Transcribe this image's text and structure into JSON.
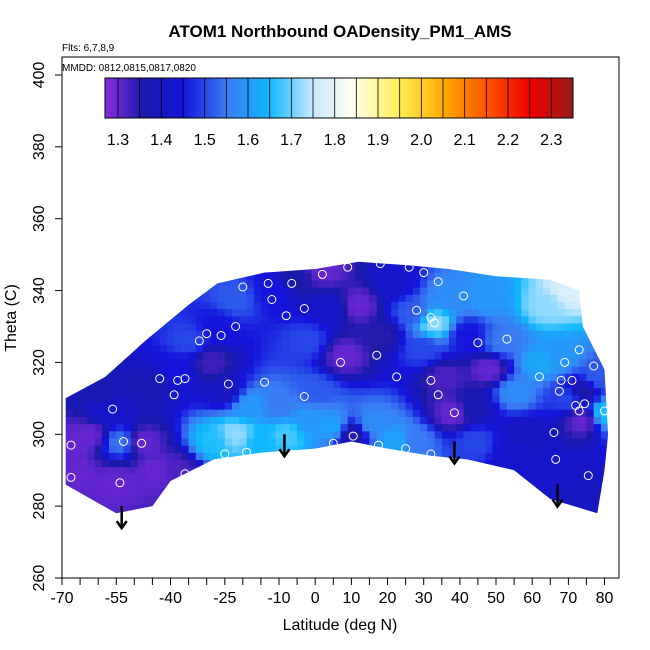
{
  "chart_data": {
    "type": "heatmap",
    "title": "ATOM1 Northbound OADensity_PM1_AMS",
    "subtitle_flights": "Flts: 6,7,8,9",
    "subtitle_dates": "MMDD: 0812,0815,0817,0820",
    "xlabel": "Latitude (deg N)",
    "ylabel": "Theta (C)",
    "xlim": [
      -70,
      84
    ],
    "ylim": [
      260,
      405
    ],
    "x_tick_values": [
      -70,
      -55,
      -40,
      -25,
      -10,
      0,
      10,
      20,
      30,
      40,
      50,
      60,
      70,
      80
    ],
    "x_tick_labels": [
      "-70",
      "-55",
      "-40",
      "-25",
      "-10",
      "0",
      "10",
      "20",
      "30",
      "40",
      "50",
      "60",
      "70",
      "80"
    ],
    "x_minor_ticks": [
      -65,
      -60,
      -50,
      -45,
      -35,
      -30,
      -20,
      -15,
      -5,
      5,
      15,
      25,
      35,
      45,
      55,
      65,
      75
    ],
    "y_tick_values": [
      260,
      280,
      300,
      320,
      340,
      360,
      380,
      400
    ],
    "y_tick_labels": [
      "260",
      "280",
      "300",
      "320",
      "340",
      "360",
      "380",
      "400"
    ],
    "colorbar": {
      "labels": [
        "1.3",
        "1.4",
        "1.5",
        "1.6",
        "1.7",
        "1.8",
        "1.9",
        "2.0",
        "2.1",
        "2.2",
        "2.3"
      ],
      "label_values": [
        1.3,
        1.4,
        1.5,
        1.6,
        1.7,
        1.8,
        1.9,
        2.0,
        2.1,
        2.2,
        2.3
      ],
      "range": [
        1.27,
        2.35
      ],
      "stops": [
        {
          "v": 1.27,
          "c": "#8a2be2"
        },
        {
          "v": 1.36,
          "c": "#1a1aa8"
        },
        {
          "v": 1.45,
          "c": "#1414dd"
        },
        {
          "v": 1.55,
          "c": "#3a7af2"
        },
        {
          "v": 1.65,
          "c": "#10b8ff"
        },
        {
          "v": 1.75,
          "c": "#c8e8ff"
        },
        {
          "v": 1.84,
          "c": "#fffff0"
        },
        {
          "v": 1.95,
          "c": "#ffee55"
        },
        {
          "v": 2.05,
          "c": "#ffaa00"
        },
        {
          "v": 2.15,
          "c": "#ff5500"
        },
        {
          "v": 2.25,
          "c": "#ee0000"
        },
        {
          "v": 2.35,
          "c": "#991a1a"
        }
      ]
    },
    "domain_outline": [
      [
        -69,
        286
      ],
      [
        -69,
        310
      ],
      [
        -58,
        316
      ],
      [
        -47,
        326
      ],
      [
        -35,
        336
      ],
      [
        -27,
        342
      ],
      [
        -14,
        345
      ],
      [
        0,
        346
      ],
      [
        12,
        348
      ],
      [
        26,
        347
      ],
      [
        37,
        346
      ],
      [
        50,
        344
      ],
      [
        65,
        343
      ],
      [
        73,
        340
      ],
      [
        74,
        330
      ],
      [
        78,
        322
      ],
      [
        80,
        318
      ],
      [
        81,
        300
      ],
      [
        80,
        290
      ],
      [
        78,
        278
      ],
      [
        65,
        282
      ],
      [
        55,
        290
      ],
      [
        42,
        293
      ],
      [
        32,
        294
      ],
      [
        20,
        296
      ],
      [
        10,
        298
      ],
      [
        0,
        296
      ],
      [
        -14,
        295
      ],
      [
        -28,
        293
      ],
      [
        -40,
        287
      ],
      [
        -45,
        280
      ],
      [
        -55,
        278
      ],
      [
        -69,
        286
      ]
    ],
    "samples": [
      {
        "lat": -66,
        "theta": 298,
        "v": 1.3
      },
      {
        "lat": -58,
        "theta": 306,
        "v": 1.42
      },
      {
        "lat": -54,
        "theta": 298,
        "v": 1.55
      },
      {
        "lat": -55,
        "theta": 287,
        "v": 1.3
      },
      {
        "lat": -62,
        "theta": 300,
        "v": 1.3
      },
      {
        "lat": -48,
        "theta": 298,
        "v": 1.3
      },
      {
        "lat": -44,
        "theta": 290,
        "v": 1.3
      },
      {
        "lat": -38,
        "theta": 290,
        "v": 1.32
      },
      {
        "lat": -45,
        "theta": 314,
        "v": 1.38
      },
      {
        "lat": -38,
        "theta": 318,
        "v": 1.45
      },
      {
        "lat": -35,
        "theta": 326,
        "v": 1.5
      },
      {
        "lat": -27,
        "theta": 330,
        "v": 1.45
      },
      {
        "lat": -22,
        "theta": 338,
        "v": 1.52
      },
      {
        "lat": -12,
        "theta": 340,
        "v": 1.45
      },
      {
        "lat": -29,
        "theta": 320,
        "v": 1.33
      },
      {
        "lat": -25,
        "theta": 312,
        "v": 1.4
      },
      {
        "lat": -22,
        "theta": 300,
        "v": 1.72
      },
      {
        "lat": -28,
        "theta": 298,
        "v": 1.66
      },
      {
        "lat": -15,
        "theta": 298,
        "v": 1.65
      },
      {
        "lat": -18,
        "theta": 308,
        "v": 1.6
      },
      {
        "lat": -10,
        "theta": 308,
        "v": 1.55
      },
      {
        "lat": -8,
        "theta": 300,
        "v": 1.68
      },
      {
        "lat": -2,
        "theta": 304,
        "v": 1.6
      },
      {
        "lat": 0,
        "theta": 312,
        "v": 1.52
      },
      {
        "lat": 5,
        "theta": 302,
        "v": 1.62
      },
      {
        "lat": 10,
        "theta": 300,
        "v": 1.35
      },
      {
        "lat": 16,
        "theta": 303,
        "v": 1.58
      },
      {
        "lat": 22,
        "theta": 298,
        "v": 1.62
      },
      {
        "lat": 28,
        "theta": 298,
        "v": 1.55
      },
      {
        "lat": -2,
        "theta": 326,
        "v": 1.5
      },
      {
        "lat": 4,
        "theta": 335,
        "v": 1.42
      },
      {
        "lat": 8,
        "theta": 322,
        "v": 1.3
      },
      {
        "lat": 12,
        "theta": 336,
        "v": 1.3
      },
      {
        "lat": 18,
        "theta": 328,
        "v": 1.35
      },
      {
        "lat": 22,
        "theta": 342,
        "v": 1.42
      },
      {
        "lat": 27,
        "theta": 334,
        "v": 1.52
      },
      {
        "lat": 30,
        "theta": 324,
        "v": 1.5
      },
      {
        "lat": 33,
        "theta": 331,
        "v": 1.72
      },
      {
        "lat": 37,
        "theta": 338,
        "v": 1.58
      },
      {
        "lat": 36,
        "theta": 316,
        "v": 1.32
      },
      {
        "lat": 38,
        "theta": 306,
        "v": 1.3
      },
      {
        "lat": 44,
        "theta": 298,
        "v": 1.5
      },
      {
        "lat": 42,
        "theta": 328,
        "v": 1.45
      },
      {
        "lat": 48,
        "theta": 338,
        "v": 1.6
      },
      {
        "lat": 52,
        "theta": 326,
        "v": 1.55
      },
      {
        "lat": 55,
        "theta": 312,
        "v": 1.58
      },
      {
        "lat": 58,
        "theta": 300,
        "v": 1.4
      },
      {
        "lat": 62,
        "theta": 320,
        "v": 1.62
      },
      {
        "lat": 64,
        "theta": 336,
        "v": 1.72
      },
      {
        "lat": 70,
        "theta": 340,
        "v": 1.78
      },
      {
        "lat": 68,
        "theta": 322,
        "v": 1.6
      },
      {
        "lat": 70,
        "theta": 310,
        "v": 1.5
      },
      {
        "lat": 74,
        "theta": 304,
        "v": 1.3
      },
      {
        "lat": 74,
        "theta": 312,
        "v": 1.36
      },
      {
        "lat": 78,
        "theta": 316,
        "v": 1.52
      },
      {
        "lat": 80,
        "theta": 306,
        "v": 1.66
      },
      {
        "lat": 66,
        "theta": 290,
        "v": 1.42
      },
      {
        "lat": 74,
        "theta": 284,
        "v": 1.4
      },
      {
        "lat": 55,
        "theta": 294,
        "v": 1.42
      },
      {
        "lat": 48,
        "theta": 318,
        "v": 1.3
      },
      {
        "lat": 44,
        "theta": 308,
        "v": 1.38
      },
      {
        "lat": -5,
        "theta": 344,
        "v": 1.36
      },
      {
        "lat": 2,
        "theta": 346,
        "v": 1.3
      },
      {
        "lat": -60,
        "theta": 312,
        "v": 1.38
      },
      {
        "lat": -66,
        "theta": 290,
        "v": 1.3
      }
    ],
    "observations": [
      {
        "lat": -67.5,
        "theta": 297
      },
      {
        "lat": -67.5,
        "theta": 288
      },
      {
        "lat": -53,
        "theta": 298
      },
      {
        "lat": -56,
        "theta": 307
      },
      {
        "lat": -48,
        "theta": 297.5
      },
      {
        "lat": -54,
        "theta": 286.5
      },
      {
        "lat": -43,
        "theta": 315.5
      },
      {
        "lat": -38,
        "theta": 315
      },
      {
        "lat": -36,
        "theta": 315.5
      },
      {
        "lat": -39,
        "theta": 311
      },
      {
        "lat": -36,
        "theta": 289
      },
      {
        "lat": -32,
        "theta": 326
      },
      {
        "lat": -30,
        "theta": 328
      },
      {
        "lat": -26,
        "theta": 327.5
      },
      {
        "lat": -22,
        "theta": 330
      },
      {
        "lat": -20,
        "theta": 341
      },
      {
        "lat": -13,
        "theta": 342
      },
      {
        "lat": -8,
        "theta": 333
      },
      {
        "lat": -6.5,
        "theta": 342
      },
      {
        "lat": -3,
        "theta": 335
      },
      {
        "lat": 2,
        "theta": 344.5
      },
      {
        "lat": 9,
        "theta": 346.5
      },
      {
        "lat": 18,
        "theta": 347.5
      },
      {
        "lat": 26,
        "theta": 346.5
      },
      {
        "lat": 30,
        "theta": 345
      },
      {
        "lat": 34,
        "theta": 342.5
      },
      {
        "lat": 41,
        "theta": 338.5
      },
      {
        "lat": 28,
        "theta": 334.5
      },
      {
        "lat": 33,
        "theta": 331
      },
      {
        "lat": 32,
        "theta": 332.5
      },
      {
        "lat": 45,
        "theta": 325.5
      },
      {
        "lat": 53,
        "theta": 326.5
      },
      {
        "lat": 7,
        "theta": 320
      },
      {
        "lat": 17,
        "theta": 322
      },
      {
        "lat": 22.5,
        "theta": 316
      },
      {
        "lat": 32,
        "theta": 315
      },
      {
        "lat": 34,
        "theta": 311
      },
      {
        "lat": 38.5,
        "theta": 306
      },
      {
        "lat": -24,
        "theta": 314
      },
      {
        "lat": -14,
        "theta": 314.5
      },
      {
        "lat": -3,
        "theta": 310.5
      },
      {
        "lat": -19,
        "theta": 295
      },
      {
        "lat": -25,
        "theta": 294.5
      },
      {
        "lat": 10.5,
        "theta": 299.5
      },
      {
        "lat": 5,
        "theta": 297.5
      },
      {
        "lat": 17.5,
        "theta": 297
      },
      {
        "lat": 25,
        "theta": 296
      },
      {
        "lat": 32,
        "theta": 294.5
      },
      {
        "lat": 62,
        "theta": 316
      },
      {
        "lat": 68,
        "theta": 315
      },
      {
        "lat": 69,
        "theta": 320
      },
      {
        "lat": 71,
        "theta": 315
      },
      {
        "lat": 73,
        "theta": 323.5
      },
      {
        "lat": 77,
        "theta": 319
      },
      {
        "lat": 67.5,
        "theta": 312
      },
      {
        "lat": 72,
        "theta": 308
      },
      {
        "lat": 74.5,
        "theta": 308.5
      },
      {
        "lat": 80,
        "theta": 306.5
      },
      {
        "lat": 73,
        "theta": 306.5
      },
      {
        "lat": 66,
        "theta": 300.5
      },
      {
        "lat": 66.5,
        "theta": 293
      },
      {
        "lat": 75.5,
        "theta": 288.5
      },
      {
        "lat": 73,
        "theta": 278
      },
      {
        "lat": -12,
        "theta": 337.5
      }
    ],
    "arrows": [
      {
        "lat": -53.5,
        "theta": 280
      },
      {
        "lat": -8.5,
        "theta": 300
      },
      {
        "lat": 38.5,
        "theta": 298
      },
      {
        "lat": 67,
        "theta": 286
      }
    ]
  }
}
